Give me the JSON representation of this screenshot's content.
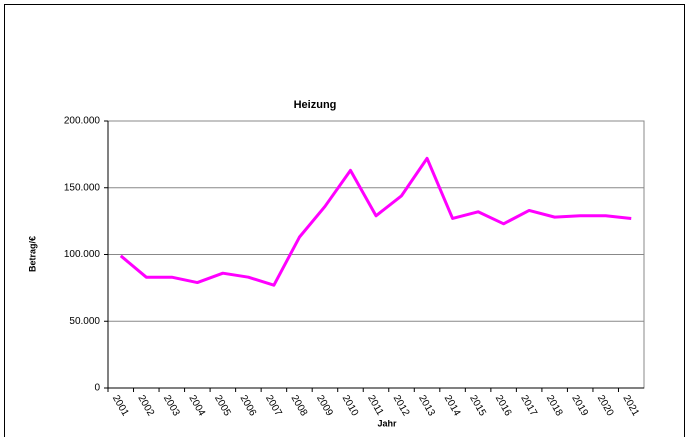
{
  "chart_data": {
    "type": "line",
    "title": "Heizung",
    "y_label": "Betrag/€",
    "x_label": "Jahr",
    "categories": [
      "2001",
      "2002",
      "2003",
      "2004",
      "2005",
      "2006",
      "2007",
      "2008",
      "2009",
      "2010",
      "2011",
      "2012",
      "2013",
      "2014",
      "2015",
      "2016",
      "2017",
      "2018",
      "2019",
      "2020",
      "2021"
    ],
    "values": [
      99000,
      83000,
      83000,
      79000,
      86000,
      83000,
      77000,
      113000,
      136000,
      163000,
      129000,
      144000,
      172000,
      127000,
      132000,
      123000,
      133000,
      128000,
      129000,
      129000,
      127000
    ],
    "color": "#ff00ff",
    "ylim": [
      0,
      200000
    ],
    "yticks": [
      0,
      {
        "value": 50000,
        "label": "50.000"
      },
      {
        "value": 100000,
        "label": "100.000"
      },
      {
        "value": 150000,
        "label": "150.000"
      },
      {
        "value": 200000,
        "label": "200.000"
      }
    ],
    "grid": true
  }
}
